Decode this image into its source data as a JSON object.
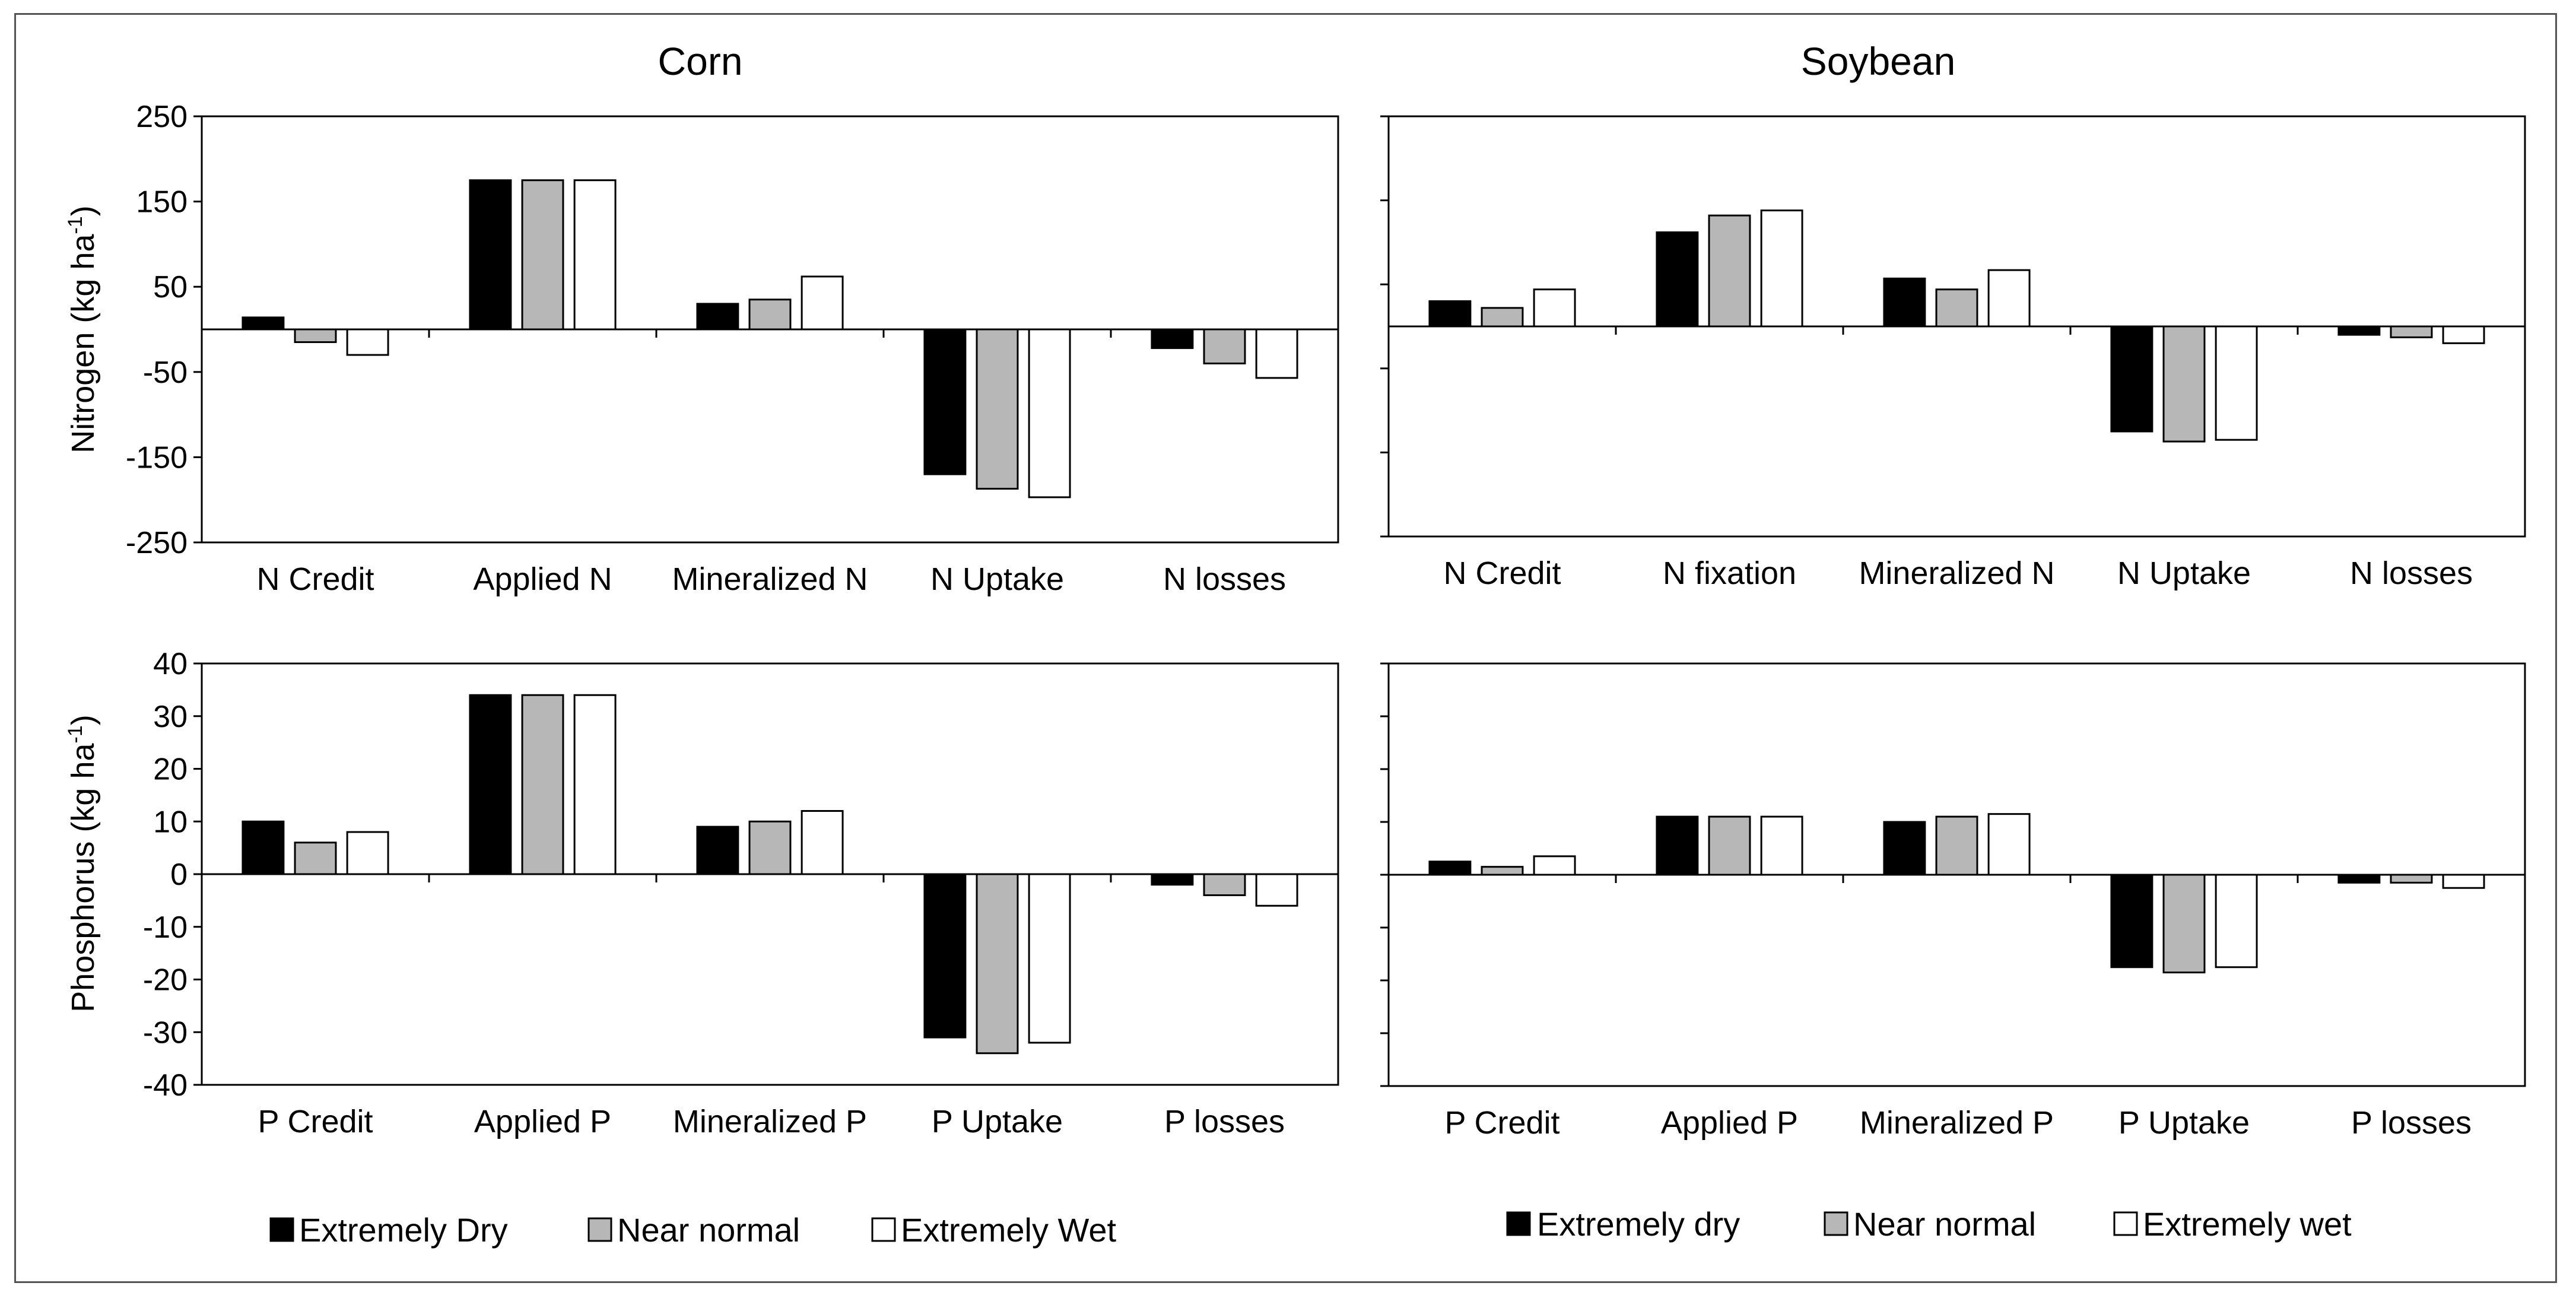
{
  "colors": {
    "dry": "#000000",
    "normal": "#b7b7b7",
    "wet": "#ffffff",
    "axis": "#000000",
    "frame": "#555555"
  },
  "y_labels": {
    "nitrogen_main": "Nitrogen  (kg ha",
    "nitrogen_sup": "-1",
    "nitrogen_close": ")",
    "phosphorus_main": "Phosphorus  (kg ha",
    "phosphorus_sup": "-1",
    "phosphorus_close": ")"
  },
  "legends": {
    "corn": [
      "Extremely Dry",
      "Near normal",
      "Extremely Wet"
    ],
    "soybean": [
      "Extremely dry",
      "Near normal",
      "Extremely wet"
    ]
  },
  "chart_data": [
    {
      "id": "corn-nitrogen",
      "type": "bar",
      "title": "Corn",
      "ylabel": "Nitrogen (kg ha-1)",
      "ylim": [
        -250,
        250
      ],
      "yticks": [
        250,
        150,
        50,
        -50,
        -150,
        -250
      ],
      "show_tick_labels": true,
      "categories": [
        "N Credit",
        "Applied N",
        "Mineralized N",
        "N Uptake",
        "N losses"
      ],
      "series": [
        {
          "name": "Extremely Dry",
          "values": [
            14,
            175,
            30,
            -170,
            -22
          ]
        },
        {
          "name": "Near normal",
          "values": [
            -15,
            175,
            35,
            -187,
            -40
          ]
        },
        {
          "name": "Extremely Wet",
          "values": [
            -30,
            175,
            62,
            -197,
            -57
          ]
        }
      ]
    },
    {
      "id": "soybean-nitrogen",
      "type": "bar",
      "title": "Soybean",
      "ylabel": "",
      "ylim": [
        -250,
        250
      ],
      "yticks": [
        250,
        150,
        50,
        -50,
        -150,
        -250
      ],
      "show_tick_labels": false,
      "categories": [
        "N Credit",
        "N fixation",
        "Mineralized N",
        "N Uptake",
        "N losses"
      ],
      "series": [
        {
          "name": "Extremely dry",
          "values": [
            30,
            112,
            57,
            -125,
            -10
          ]
        },
        {
          "name": "Near normal",
          "values": [
            22,
            132,
            44,
            -137,
            -13
          ]
        },
        {
          "name": "Extremely wet",
          "values": [
            44,
            138,
            67,
            -135,
            -20
          ]
        }
      ]
    },
    {
      "id": "corn-phosphorus",
      "type": "bar",
      "title": "",
      "ylabel": "Phosphorus (kg ha-1)",
      "ylim": [
        -40,
        40
      ],
      "yticks": [
        40,
        30,
        20,
        10,
        0,
        -10,
        -20,
        -30,
        -40
      ],
      "show_tick_labels": true,
      "categories": [
        "P Credit",
        "Applied P",
        "Mineralized P",
        "P Uptake",
        "P losses"
      ],
      "series": [
        {
          "name": "Extremely Dry",
          "values": [
            10,
            34,
            9,
            -31,
            -2
          ]
        },
        {
          "name": "Near normal",
          "values": [
            6,
            34,
            10,
            -34,
            -4
          ]
        },
        {
          "name": "Extremely Wet",
          "values": [
            8,
            34,
            12,
            -32,
            -6
          ]
        }
      ]
    },
    {
      "id": "soybean-phosphorus",
      "type": "bar",
      "title": "",
      "ylabel": "",
      "ylim": [
        -40,
        40
      ],
      "yticks": [
        40,
        30,
        20,
        10,
        0,
        -10,
        -20,
        -30,
        -40
      ],
      "show_tick_labels": false,
      "categories": [
        "P Credit",
        "Applied P",
        "Mineralized P",
        "P Uptake",
        "P losses"
      ],
      "series": [
        {
          "name": "Extremely dry",
          "values": [
            2.5,
            11,
            10,
            -17.5,
            -1.5
          ]
        },
        {
          "name": "Near normal",
          "values": [
            1.5,
            11,
            11,
            -18.5,
            -1.5
          ]
        },
        {
          "name": "Extremely wet",
          "values": [
            3.5,
            11,
            11.5,
            -17.5,
            -2.5
          ]
        }
      ]
    }
  ]
}
